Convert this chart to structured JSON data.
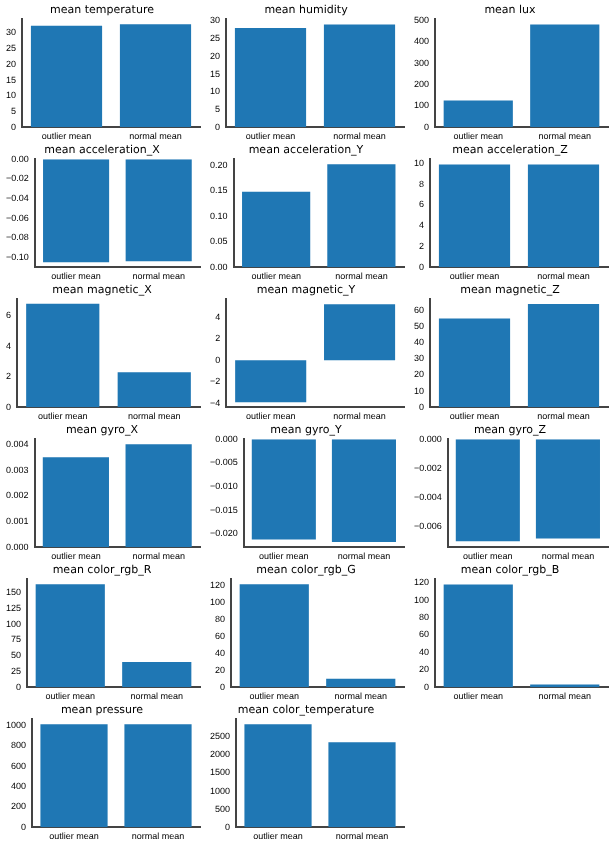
{
  "chart_data": [
    {
      "type": "bar",
      "title": "mean temperature",
      "categories": [
        "outlier mean",
        "normal mean"
      ],
      "values": [
        32.3,
        32.8
      ],
      "color": "#1f77b4",
      "ylim": [
        0,
        34.4
      ],
      "yticks": [
        0,
        5,
        10,
        15,
        20,
        25,
        30
      ]
    },
    {
      "type": "bar",
      "title": "mean humidity",
      "categories": [
        "outlier mean",
        "normal mean"
      ],
      "values": [
        28,
        29
      ],
      "color": "#1f77b4",
      "ylim": [
        0,
        30.5
      ],
      "yticks": [
        0,
        5,
        10,
        15,
        20,
        25,
        30
      ]
    },
    {
      "type": "bar",
      "title": "mean lux",
      "categories": [
        "outlier mean",
        "normal mean"
      ],
      "values": [
        125,
        480
      ],
      "color": "#1f77b4",
      "ylim": [
        0,
        505
      ],
      "yticks": [
        0,
        100,
        200,
        300,
        400,
        500
      ]
    },
    {
      "type": "bar",
      "title": "mean acceleration_X",
      "categories": [
        "outlier mean",
        "normal mean"
      ],
      "values": [
        -0.105,
        -0.104
      ],
      "color": "#1f77b4",
      "ylim": [
        -0.11,
        0
      ],
      "yticks": [
        {
          "value": 0,
          "label": "0.00"
        },
        {
          "value": -0.02,
          "label": "−0.02"
        },
        {
          "value": -0.04,
          "label": "−0.04"
        },
        {
          "value": -0.06,
          "label": "−0.06"
        },
        {
          "value": -0.08,
          "label": "−0.08"
        },
        {
          "value": -0.1,
          "label": "−0.10"
        }
      ]
    },
    {
      "type": "bar",
      "title": "mean acceleration_Y",
      "categories": [
        "outlier mean",
        "normal mean"
      ],
      "values": [
        0.148,
        0.202
      ],
      "color": "#1f77b4",
      "ylim": [
        0,
        0.212
      ],
      "yticks": [
        {
          "value": 0,
          "label": "0.00"
        },
        {
          "value": 0.05,
          "label": "0.05"
        },
        {
          "value": 0.1,
          "label": "0.10"
        },
        {
          "value": 0.15,
          "label": "0.15"
        },
        {
          "value": 0.2,
          "label": "0.20"
        }
      ]
    },
    {
      "type": "bar",
      "title": "mean acceleration_Z",
      "categories": [
        "outlier mean",
        "normal mean"
      ],
      "values": [
        9.9,
        9.9
      ],
      "color": "#1f77b4",
      "ylim": [
        0,
        10.4
      ],
      "yticks": [
        0,
        2,
        4,
        6,
        8,
        10
      ]
    },
    {
      "type": "bar",
      "title": "mean magnetic_X",
      "categories": [
        "outlier mean",
        "normal mean"
      ],
      "values": [
        6.8,
        2.3
      ],
      "color": "#1f77b4",
      "ylim": [
        0,
        7.1
      ],
      "yticks": [
        0,
        2,
        4,
        6
      ]
    },
    {
      "type": "bar",
      "title": "mean magnetic_Y",
      "categories": [
        "outlier mean",
        "normal mean"
      ],
      "values": [
        -3.9,
        5.2
      ],
      "color": "#1f77b4",
      "ylim": [
        -4.36,
        5.66
      ],
      "yticks": [
        {
          "value": -4,
          "label": "−4"
        },
        {
          "value": -2,
          "label": "−2"
        },
        0,
        2,
        4
      ]
    },
    {
      "type": "bar",
      "title": "mean magnetic_Z",
      "categories": [
        "outlier mean",
        "normal mean"
      ],
      "values": [
        55,
        64
      ],
      "color": "#1f77b4",
      "ylim": [
        0,
        67
      ],
      "yticks": [
        0,
        10,
        20,
        30,
        40,
        50,
        60
      ]
    },
    {
      "type": "bar",
      "title": "mean gyro_X",
      "categories": [
        "outlier mean",
        "normal mean"
      ],
      "values": [
        0.0035,
        0.004
      ],
      "color": "#1f77b4",
      "ylim": [
        0,
        0.0042
      ],
      "yticks": [
        {
          "value": 0,
          "label": "0.000"
        },
        {
          "value": 0.001,
          "label": "0.001"
        },
        {
          "value": 0.002,
          "label": "0.002"
        },
        {
          "value": 0.003,
          "label": "0.003"
        },
        {
          "value": 0.004,
          "label": "0.004"
        }
      ]
    },
    {
      "type": "bar",
      "title": "mean gyro_Y",
      "categories": [
        "outlier mean",
        "normal mean"
      ],
      "values": [
        -0.0212,
        -0.0217
      ],
      "color": "#1f77b4",
      "ylim": [
        -0.0228,
        0
      ],
      "yticks": [
        {
          "value": 0,
          "label": "0.000"
        },
        {
          "value": -0.005,
          "label": "−0.005"
        },
        {
          "value": -0.01,
          "label": "−0.010"
        },
        {
          "value": -0.015,
          "label": "−0.015"
        },
        {
          "value": -0.02,
          "label": "−0.020"
        }
      ]
    },
    {
      "type": "bar",
      "title": "mean gyro_Z",
      "categories": [
        "outlier mean",
        "normal mean"
      ],
      "values": [
        -0.007,
        -0.0068
      ],
      "color": "#1f77b4",
      "ylim": [
        -0.0074,
        0
      ],
      "yticks": [
        {
          "value": 0,
          "label": "0.000"
        },
        {
          "value": -0.002,
          "label": "−0.002"
        },
        {
          "value": -0.004,
          "label": "−0.004"
        },
        {
          "value": -0.006,
          "label": "−0.006"
        }
      ]
    },
    {
      "type": "bar",
      "title": "mean color_rgb_R",
      "categories": [
        "outlier mean",
        "normal mean"
      ],
      "values": [
        163,
        40
      ],
      "color": "#1f77b4",
      "ylim": [
        0,
        171
      ],
      "yticks": [
        0,
        25,
        50,
        75,
        100,
        125,
        150
      ]
    },
    {
      "type": "bar",
      "title": "mean color_rgb_G",
      "categories": [
        "outlier mean",
        "normal mean"
      ],
      "values": [
        122,
        10
      ],
      "color": "#1f77b4",
      "ylim": [
        0,
        128
      ],
      "yticks": [
        0,
        20,
        40,
        60,
        80,
        100,
        120
      ]
    },
    {
      "type": "bar",
      "title": "mean color_rgb_B",
      "categories": [
        "outlier mean",
        "normal mean"
      ],
      "values": [
        118,
        3
      ],
      "color": "#1f77b4",
      "ylim": [
        0,
        124
      ],
      "yticks": [
        0,
        20,
        40,
        60,
        80,
        100,
        120
      ]
    },
    {
      "type": "bar",
      "title": "mean pressure",
      "categories": [
        "outlier mean",
        "normal mean"
      ],
      "values": [
        1010,
        1010
      ],
      "color": "#1f77b4",
      "ylim": [
        0,
        1060
      ],
      "yticks": [
        0,
        200,
        400,
        600,
        800,
        1000
      ]
    },
    {
      "type": "bar",
      "title": "mean color_temperature",
      "categories": [
        "outlier mean",
        "normal mean"
      ],
      "values": [
        2850,
        2350
      ],
      "color": "#1f77b4",
      "ylim": [
        0,
        2990
      ],
      "yticks": [
        0,
        500,
        1000,
        1500,
        2000,
        2500
      ]
    }
  ]
}
